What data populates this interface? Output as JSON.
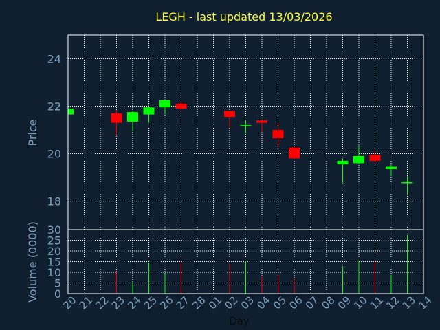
{
  "chart_data": {
    "type": "candlestick",
    "title": "LEGH - last updated 13/03/2026",
    "xlabel": "Day",
    "colors": {
      "background": "#0f1f2f",
      "title": "#ffff33",
      "axis_text": "#7f9fbf",
      "grid": "#ffffff",
      "frame": "#ffffff",
      "up": "#00ff00",
      "down": "#ff0000"
    },
    "x_tick_labels": [
      "20",
      "21",
      "22",
      "23",
      "24",
      "25",
      "26",
      "27",
      "28",
      "01",
      "02",
      "03",
      "04",
      "05",
      "06",
      "07",
      "08",
      "09",
      "10",
      "11",
      "12",
      "13",
      "14"
    ],
    "price_panel": {
      "ylabel": "Price",
      "ylim": [
        16.8,
        25.0
      ],
      "yticks": [
        "18",
        "20",
        "22",
        "24"
      ],
      "grid": true
    },
    "volume_panel": {
      "ylabel": "Volume (0000)",
      "ylim": [
        0,
        30
      ],
      "yticks": [
        "0",
        "5",
        "10",
        "15",
        "20",
        "25",
        "30"
      ],
      "grid": true
    },
    "candles": [
      {
        "day": "20",
        "open": 21.65,
        "high": 21.9,
        "low": 21.6,
        "close": 21.9,
        "volume": 0
      },
      {
        "day": "23",
        "open": 21.7,
        "high": 21.85,
        "low": 20.75,
        "close": 21.3,
        "volume": 10.5
      },
      {
        "day": "24",
        "open": 21.35,
        "high": 21.8,
        "low": 20.95,
        "close": 21.75,
        "volume": 5.3
      },
      {
        "day": "25",
        "open": 21.65,
        "high": 22.05,
        "low": 21.3,
        "close": 21.95,
        "volume": 14.5
      },
      {
        "day": "26",
        "open": 21.95,
        "high": 22.3,
        "low": 21.65,
        "close": 22.25,
        "volume": 9.5
      },
      {
        "day": "27",
        "open": 22.1,
        "high": 22.2,
        "low": 21.8,
        "close": 21.9,
        "volume": 14.8
      },
      {
        "day": "02",
        "open": 21.8,
        "high": 21.8,
        "low": 21.1,
        "close": 21.55,
        "volume": 14.0
      },
      {
        "day": "03",
        "open": 21.15,
        "high": 21.4,
        "low": 20.85,
        "close": 21.2,
        "volume": 15.1
      },
      {
        "day": "04",
        "open": 21.4,
        "high": 21.4,
        "low": 20.9,
        "close": 21.3,
        "volume": 8.1
      },
      {
        "day": "05",
        "open": 21.0,
        "high": 21.3,
        "low": 20.3,
        "close": 20.65,
        "volume": 8.6
      },
      {
        "day": "06",
        "open": 20.25,
        "high": 20.3,
        "low": 19.75,
        "close": 19.8,
        "volume": 7.2
      },
      {
        "day": "09",
        "open": 19.55,
        "high": 19.8,
        "low": 18.75,
        "close": 19.7,
        "volume": 12.8
      },
      {
        "day": "10",
        "open": 19.6,
        "high": 20.35,
        "low": 19.55,
        "close": 19.9,
        "volume": 15.4
      },
      {
        "day": "11",
        "open": 19.95,
        "high": 20.15,
        "low": 19.6,
        "close": 19.7,
        "volume": 15.0
      },
      {
        "day": "12",
        "open": 19.35,
        "high": 19.55,
        "low": 19.05,
        "close": 19.45,
        "volume": 8.8
      },
      {
        "day": "13",
        "open": 18.8,
        "high": 19.05,
        "low": 18.25,
        "close": 18.8,
        "volume": 27.4
      }
    ]
  }
}
